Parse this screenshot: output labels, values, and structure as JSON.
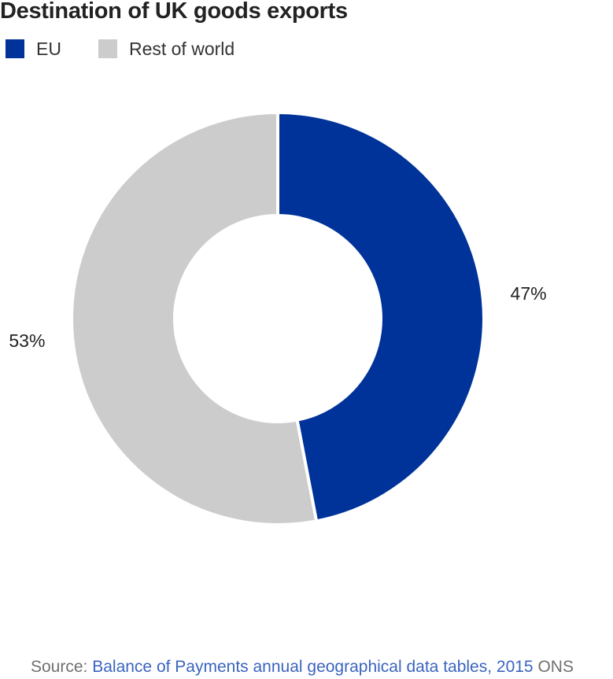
{
  "title": "Destination of UK goods exports",
  "legend": [
    {
      "label": "EU",
      "color": "#003399"
    },
    {
      "label": "Rest of world",
      "color": "#cccccc"
    }
  ],
  "chart_data": {
    "type": "pie",
    "variant": "donut",
    "title": "Destination of UK goods exports",
    "categories": [
      "EU",
      "Rest of world"
    ],
    "values": [
      47,
      53
    ],
    "labels": [
      "47%",
      "53%"
    ],
    "colors": [
      "#003399",
      "#cccccc"
    ],
    "legend": "top-left"
  },
  "source": {
    "prefix": "Source: ",
    "link_text": "Balance of Payments annual geographical data tables, 2015",
    "suffix": " ONS"
  }
}
